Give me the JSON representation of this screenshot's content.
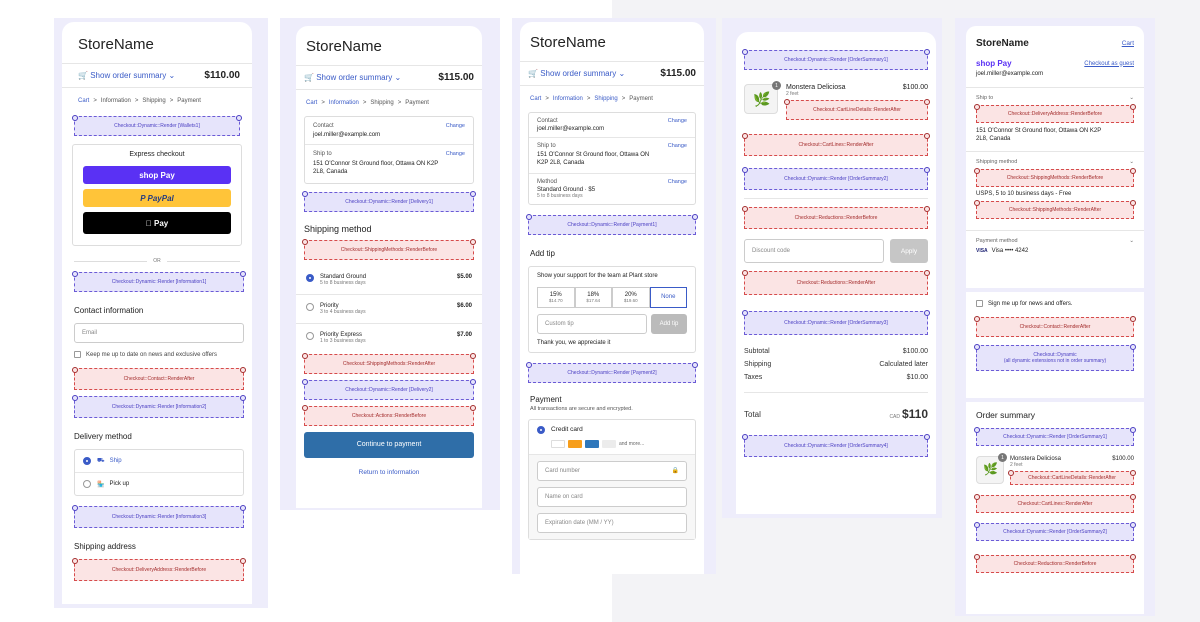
{
  "store_name": "StoreName",
  "p1": {
    "summary_label": "Show order summary",
    "price": "$110.00",
    "crumbs": [
      "Cart",
      ">",
      "Information",
      ">",
      "Shipping",
      ">",
      "Payment"
    ],
    "ext_wallets": "Checkout::Dynamic::Render [Wallets1]",
    "express_title": "Express checkout",
    "shop_pay": "shop Pay",
    "paypal": "P PayPal",
    "apple_pay": " Pay",
    "or": "OR",
    "ext_info1": "Checkout::Dynamic::Render [Information1]",
    "contact_title": "Contact information",
    "email_placeholder": "Email",
    "keep_me": "Keep me up to date on news and exclusive offers",
    "ext_contact_after": "Checkout::Contact::RenderAfter",
    "ext_info2": "Checkout::Dynamic::Render [Information2]",
    "delivery_title": "Delivery method",
    "ship": "Ship",
    "pickup": "Pick up",
    "ext_info3": "Checkout::Dynamic::Render [Information3]",
    "shipping_title": "Shipping address",
    "ext_delivery_before": "Checkout::DeliveryAddress::RenderBefore"
  },
  "p2": {
    "summary_label": "Show order summary",
    "price": "$115.00",
    "crumbs": [
      "Cart",
      ">",
      "Information",
      ">",
      "Shipping",
      ">",
      "Payment"
    ],
    "contact_label": "Contact",
    "contact_value": "joel.miller@example.com",
    "change": "Change",
    "shipto_label": "Ship to",
    "shipto_value": "151 O'Connor St Ground floor, Ottawa ON K2P 2L8, Canada",
    "ext_delivery1": "Checkout::Dynamic::Render [Delivery1]",
    "method_title": "Shipping method",
    "ext_sm_before": "Checkout::ShippingMethods::RenderBefore",
    "methods": [
      {
        "name": "Standard Ground",
        "days": "5 to 8 business days",
        "price": "$5.00"
      },
      {
        "name": "Priority",
        "days": "3 to 4 business days",
        "price": "$6.00"
      },
      {
        "name": "Priority Express",
        "days": "1 to 3 business days",
        "price": "$7.00"
      }
    ],
    "ext_sm_after": "Checkout::ShippingMethods::RenderAfter",
    "ext_delivery2": "Checkout::Dynamic::Render [Delivery2]",
    "ext_actions_before": "Checkout::Actions::RenderBefore",
    "continue": "Continue to payment",
    "return": "Return to information"
  },
  "p3": {
    "summary_label": "Show order summary",
    "price": "$115.00",
    "crumbs": [
      "Cart",
      ">",
      "Information",
      ">",
      "Shipping",
      ">",
      "Payment"
    ],
    "contact_label": "Contact",
    "contact_value": "joel.miller@example.com",
    "change": "Change",
    "shipto_label": "Ship to",
    "shipto_value": "151 O'Connor St Ground floor, Ottawa ON K2P 2L8, Canada",
    "method_label": "Method",
    "method_value": "Standard Ground · $5",
    "method_days": "5 to 8 business days",
    "ext_payment1": "Checkout::Dynamic::Render [Payment1]",
    "tip_title": "Add tip",
    "tip_support": "Show your support for the team at Plant store",
    "tips": [
      {
        "pct": "15%",
        "amt": "$14.70"
      },
      {
        "pct": "18%",
        "amt": "$17.64"
      },
      {
        "pct": "20%",
        "amt": "$19.60"
      },
      {
        "pct": "None",
        "amt": ""
      }
    ],
    "custom_tip": "Custom tip",
    "add_tip": "Add tip",
    "thanks": "Thank you, we appreciate it",
    "ext_payment2": "Checkout::Dynamic::Render [Payment2]",
    "payment_title": "Payment",
    "payment_sub": "All transactions are secure and encrypted.",
    "credit_card": "Credit card",
    "and_more": "and more...",
    "card_number": "Card number",
    "name_on_card": "Name on card",
    "expiry": "Expiration date (MM / YY)"
  },
  "p4": {
    "ext_os1": "Checkout::Dynamic::Render [OrderSummary1]",
    "qty": "1",
    "product": "Monstera Deliciosa",
    "variant": "2 feet",
    "product_price": "$100.00",
    "ext_cld_after": "Checkout::CartLineDetails::RenderAfter",
    "ext_cl_after": "Checkout::CartLines::RenderAfter",
    "ext_os2": "Checkout::Dynamic::Render [OrderSummary2]",
    "ext_red_before": "Checkout::Reductions::RenderBefore",
    "discount_placeholder": "Discount code",
    "apply": "Apply",
    "ext_red_after": "Checkout::Reductions::RenderAfter",
    "ext_os3": "Checkout::Dynamic::Render [OrderSummary3]",
    "subtotal_label": "Subtotal",
    "subtotal": "$100.00",
    "shipping_label": "Shipping",
    "shipping": "Calculated later",
    "taxes_label": "Taxes",
    "taxes": "$10.00",
    "total_label": "Total",
    "currency": "CAD",
    "total": "$110",
    "ext_os4": "Checkout::Dynamic::Render [OrderSummary4]"
  },
  "p5": {
    "cart": "Cart",
    "shop_pay": "shop Pay",
    "checkout_guest": "Checkout as guest",
    "email": "joel.miller@example.com",
    "shipto_label": "Ship to",
    "ext_delivery_before": "Checkout::DeliveryAddress::RenderBefore",
    "address": "151 O'Connor St Ground floor, Ottawa ON K2P 2L8, Canada",
    "method_label": "Shipping method",
    "ext_sm_before": "Checkout::ShippingMethods::RenderBefore",
    "method_value": "USPS, 5 to 10 business days - Free",
    "ext_sm_after": "Checkout::ShippingMethods::RenderAfter",
    "payment_label": "Payment method",
    "visa": "VISA",
    "card_value": "Visa •••• 4242",
    "signup": "Sign me up for news and offers.",
    "ext_contact_after": "Checkout::Contact::RenderAfter",
    "ext_dynamic": "Checkout::Dynamic",
    "ext_dynamic_sub": "(all dynamic extensions not in order summary)",
    "order_summary": "Order summary",
    "ext_os1": "Checkout::Dynamic::Render [OrderSummary1]",
    "qty": "1",
    "product": "Monstera Deliciosa",
    "variant": "2 feet",
    "product_price": "$100.00",
    "ext_cld_after": "Checkout::CartLineDetails::RenderAfter",
    "ext_cl_after": "Checkout::CartLines::RenderAfter",
    "ext_os2": "Checkout::Dynamic::Render [OrderSummary2]",
    "ext_red_before": "Checkout::Reductions::RenderBefore"
  }
}
